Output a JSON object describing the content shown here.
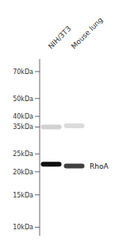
{
  "chart_data": {
    "type": "scatter",
    "categories": [
      "NIH/3T3",
      "Mouse lung"
    ],
    "series": [
      {
        "values": [
          22.0,
          21.5
        ],
        "intensity": [
          0.95,
          0.75
        ]
      },
      {
        "values": [
          35.0,
          35.5
        ],
        "intensity": [
          0.18,
          0.14
        ]
      }
    ],
    "log": "y",
    "ylim": [
      9,
      82
    ],
    "yticks": [
      {
        "value": 70,
        "label": "70kDa"
      },
      {
        "value": 50,
        "label": "50kDa"
      },
      {
        "value": 40,
        "label": "40kDa"
      },
      {
        "value": 35,
        "label": "35kDa"
      },
      {
        "value": 25,
        "label": "25kDa"
      },
      {
        "value": 20,
        "label": "20kDa"
      },
      {
        "value": 15,
        "label": "15kDa"
      },
      {
        "value": 10,
        "label": "10kDa"
      }
    ],
    "annotations": [
      {
        "text": "RhoA",
        "y": 21.5
      }
    ],
    "grid": false
  }
}
